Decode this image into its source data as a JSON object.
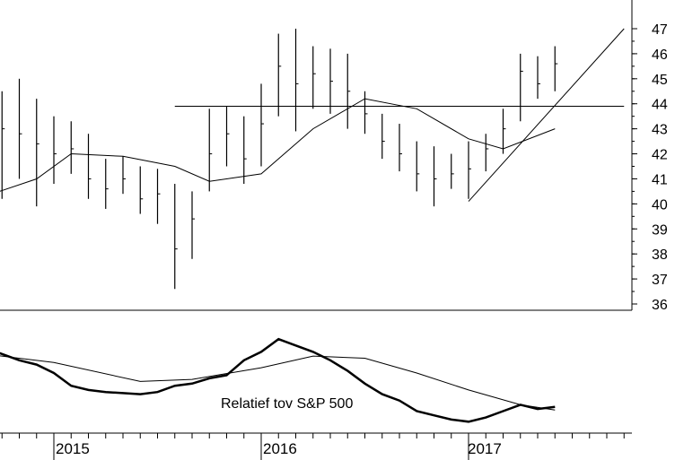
{
  "chart_data": [
    {
      "type": "ohlc",
      "title": "",
      "xlabel": "",
      "ylabel": "",
      "y_ticks": [
        36,
        37,
        38,
        39,
        40,
        41,
        42,
        43,
        44,
        45,
        46,
        47
      ],
      "ylim": [
        35.5,
        48
      ],
      "x_ticks": [
        "2015",
        "2016",
        "2017"
      ],
      "xlim": [
        "2014-09",
        "2017-10"
      ],
      "grid": false,
      "price_bars": [
        {
          "x": "2014-09",
          "low": 40.5,
          "high": 44.0,
          "close": 41.8
        },
        {
          "x": "2014-10",
          "low": 40.2,
          "high": 44.5,
          "close": 43.0
        },
        {
          "x": "2014-11",
          "low": 41.0,
          "high": 45.0,
          "close": 42.8
        },
        {
          "x": "2014-12",
          "low": 39.9,
          "high": 44.2,
          "close": 42.4
        },
        {
          "x": "2015-01",
          "low": 40.8,
          "high": 43.5,
          "close": 42.0
        },
        {
          "x": "2015-02",
          "low": 41.2,
          "high": 43.3,
          "close": 42.2
        },
        {
          "x": "2015-03",
          "low": 40.2,
          "high": 42.8,
          "close": 41.0
        },
        {
          "x": "2015-04",
          "low": 39.8,
          "high": 41.8,
          "close": 40.6
        },
        {
          "x": "2015-05",
          "low": 40.4,
          "high": 41.9,
          "close": 41.0
        },
        {
          "x": "2015-06",
          "low": 39.6,
          "high": 41.5,
          "close": 40.2
        },
        {
          "x": "2015-07",
          "low": 39.2,
          "high": 41.4,
          "close": 40.4
        },
        {
          "x": "2015-08",
          "low": 36.6,
          "high": 40.8,
          "close": 38.2
        },
        {
          "x": "2015-09",
          "low": 37.8,
          "high": 40.5,
          "close": 39.4
        },
        {
          "x": "2015-10",
          "low": 40.5,
          "high": 43.8,
          "close": 42.0
        },
        {
          "x": "2015-11",
          "low": 41.5,
          "high": 43.9,
          "close": 42.8
        },
        {
          "x": "2015-12",
          "low": 40.8,
          "high": 43.5,
          "close": 41.8
        },
        {
          "x": "2016-01",
          "low": 41.5,
          "high": 44.8,
          "close": 43.2
        },
        {
          "x": "2016-02",
          "low": 43.5,
          "high": 46.8,
          "close": 45.5
        },
        {
          "x": "2016-03",
          "low": 42.9,
          "high": 47.0,
          "close": 44.8
        },
        {
          "x": "2016-04",
          "low": 43.8,
          "high": 46.3,
          "close": 45.2
        },
        {
          "x": "2016-05",
          "low": 43.6,
          "high": 46.2,
          "close": 44.9
        },
        {
          "x": "2016-06",
          "low": 43.0,
          "high": 46.0,
          "close": 44.5
        },
        {
          "x": "2016-07",
          "low": 42.8,
          "high": 44.5,
          "close": 43.6
        },
        {
          "x": "2016-08",
          "low": 41.8,
          "high": 43.6,
          "close": 42.5
        },
        {
          "x": "2016-09",
          "low": 41.3,
          "high": 43.2,
          "close": 42.0
        },
        {
          "x": "2016-10",
          "low": 40.5,
          "high": 42.5,
          "close": 41.2
        },
        {
          "x": "2016-11",
          "low": 39.9,
          "high": 42.3,
          "close": 41.0
        },
        {
          "x": "2016-12",
          "low": 40.6,
          "high": 42.0,
          "close": 41.2
        },
        {
          "x": "2017-01",
          "low": 40.2,
          "high": 42.5,
          "close": 41.4
        },
        {
          "x": "2017-02",
          "low": 41.3,
          "high": 42.8,
          "close": 42.2
        },
        {
          "x": "2017-03",
          "low": 42.0,
          "high": 43.8,
          "close": 43.0
        },
        {
          "x": "2017-04",
          "low": 43.3,
          "high": 46.0,
          "close": 45.3
        },
        {
          "x": "2017-05",
          "low": 44.2,
          "high": 45.9,
          "close": 44.8
        },
        {
          "x": "2017-06",
          "low": 44.5,
          "high": 46.3,
          "close": 45.6
        }
      ],
      "moving_average": [
        {
          "x": "2014-09",
          "y": 40.3
        },
        {
          "x": "2014-12",
          "y": 41.0
        },
        {
          "x": "2015-02",
          "y": 42.0
        },
        {
          "x": "2015-05",
          "y": 41.9
        },
        {
          "x": "2015-08",
          "y": 41.5
        },
        {
          "x": "2015-10",
          "y": 40.9
        },
        {
          "x": "2016-01",
          "y": 41.2
        },
        {
          "x": "2016-04",
          "y": 43.0
        },
        {
          "x": "2016-07",
          "y": 44.2
        },
        {
          "x": "2016-10",
          "y": 43.8
        },
        {
          "x": "2017-01",
          "y": 42.6
        },
        {
          "x": "2017-03",
          "y": 42.2
        },
        {
          "x": "2017-06",
          "y": 43.0
        }
      ],
      "horizontal_line": {
        "y": 43.9,
        "from": "2015-08",
        "to": "2017-10"
      },
      "trend_line": {
        "from": {
          "x": "2017-01",
          "y": 40.1
        },
        "to": {
          "x": "2017-10",
          "y": 47.0
        }
      }
    },
    {
      "type": "line",
      "annotation": "Relatief tov S&P 500",
      "x_ticks": [
        "2015",
        "2016",
        "2017"
      ],
      "series_relative": [
        {
          "x": "2014-09",
          "y": 0.74
        },
        {
          "x": "2014-10",
          "y": 0.68
        },
        {
          "x": "2014-11",
          "y": 0.62
        },
        {
          "x": "2014-12",
          "y": 0.58
        },
        {
          "x": "2015-01",
          "y": 0.5
        },
        {
          "x": "2015-02",
          "y": 0.38
        },
        {
          "x": "2015-03",
          "y": 0.34
        },
        {
          "x": "2015-04",
          "y": 0.32
        },
        {
          "x": "2015-05",
          "y": 0.31
        },
        {
          "x": "2015-06",
          "y": 0.3
        },
        {
          "x": "2015-07",
          "y": 0.32
        },
        {
          "x": "2015-08",
          "y": 0.38
        },
        {
          "x": "2015-09",
          "y": 0.4
        },
        {
          "x": "2015-10",
          "y": 0.45
        },
        {
          "x": "2015-11",
          "y": 0.48
        },
        {
          "x": "2015-12",
          "y": 0.62
        },
        {
          "x": "2016-01",
          "y": 0.7
        },
        {
          "x": "2016-02",
          "y": 0.82
        },
        {
          "x": "2016-03",
          "y": 0.76
        },
        {
          "x": "2016-04",
          "y": 0.7
        },
        {
          "x": "2016-05",
          "y": 0.62
        },
        {
          "x": "2016-06",
          "y": 0.52
        },
        {
          "x": "2016-07",
          "y": 0.4
        },
        {
          "x": "2016-08",
          "y": 0.3
        },
        {
          "x": "2016-09",
          "y": 0.24
        },
        {
          "x": "2016-10",
          "y": 0.14
        },
        {
          "x": "2016-11",
          "y": 0.1
        },
        {
          "x": "2016-12",
          "y": 0.06
        },
        {
          "x": "2017-01",
          "y": 0.04
        },
        {
          "x": "2017-02",
          "y": 0.08
        },
        {
          "x": "2017-03",
          "y": 0.14
        },
        {
          "x": "2017-04",
          "y": 0.2
        },
        {
          "x": "2017-05",
          "y": 0.16
        },
        {
          "x": "2017-06",
          "y": 0.18
        }
      ],
      "series_average": [
        {
          "x": "2014-09",
          "y": 0.68
        },
        {
          "x": "2015-01",
          "y": 0.6
        },
        {
          "x": "2015-06",
          "y": 0.42
        },
        {
          "x": "2015-09",
          "y": 0.44
        },
        {
          "x": "2016-01",
          "y": 0.55
        },
        {
          "x": "2016-04",
          "y": 0.66
        },
        {
          "x": "2016-07",
          "y": 0.64
        },
        {
          "x": "2016-10",
          "y": 0.5
        },
        {
          "x": "2017-01",
          "y": 0.34
        },
        {
          "x": "2017-04",
          "y": 0.2
        },
        {
          "x": "2017-06",
          "y": 0.15
        }
      ]
    }
  ]
}
